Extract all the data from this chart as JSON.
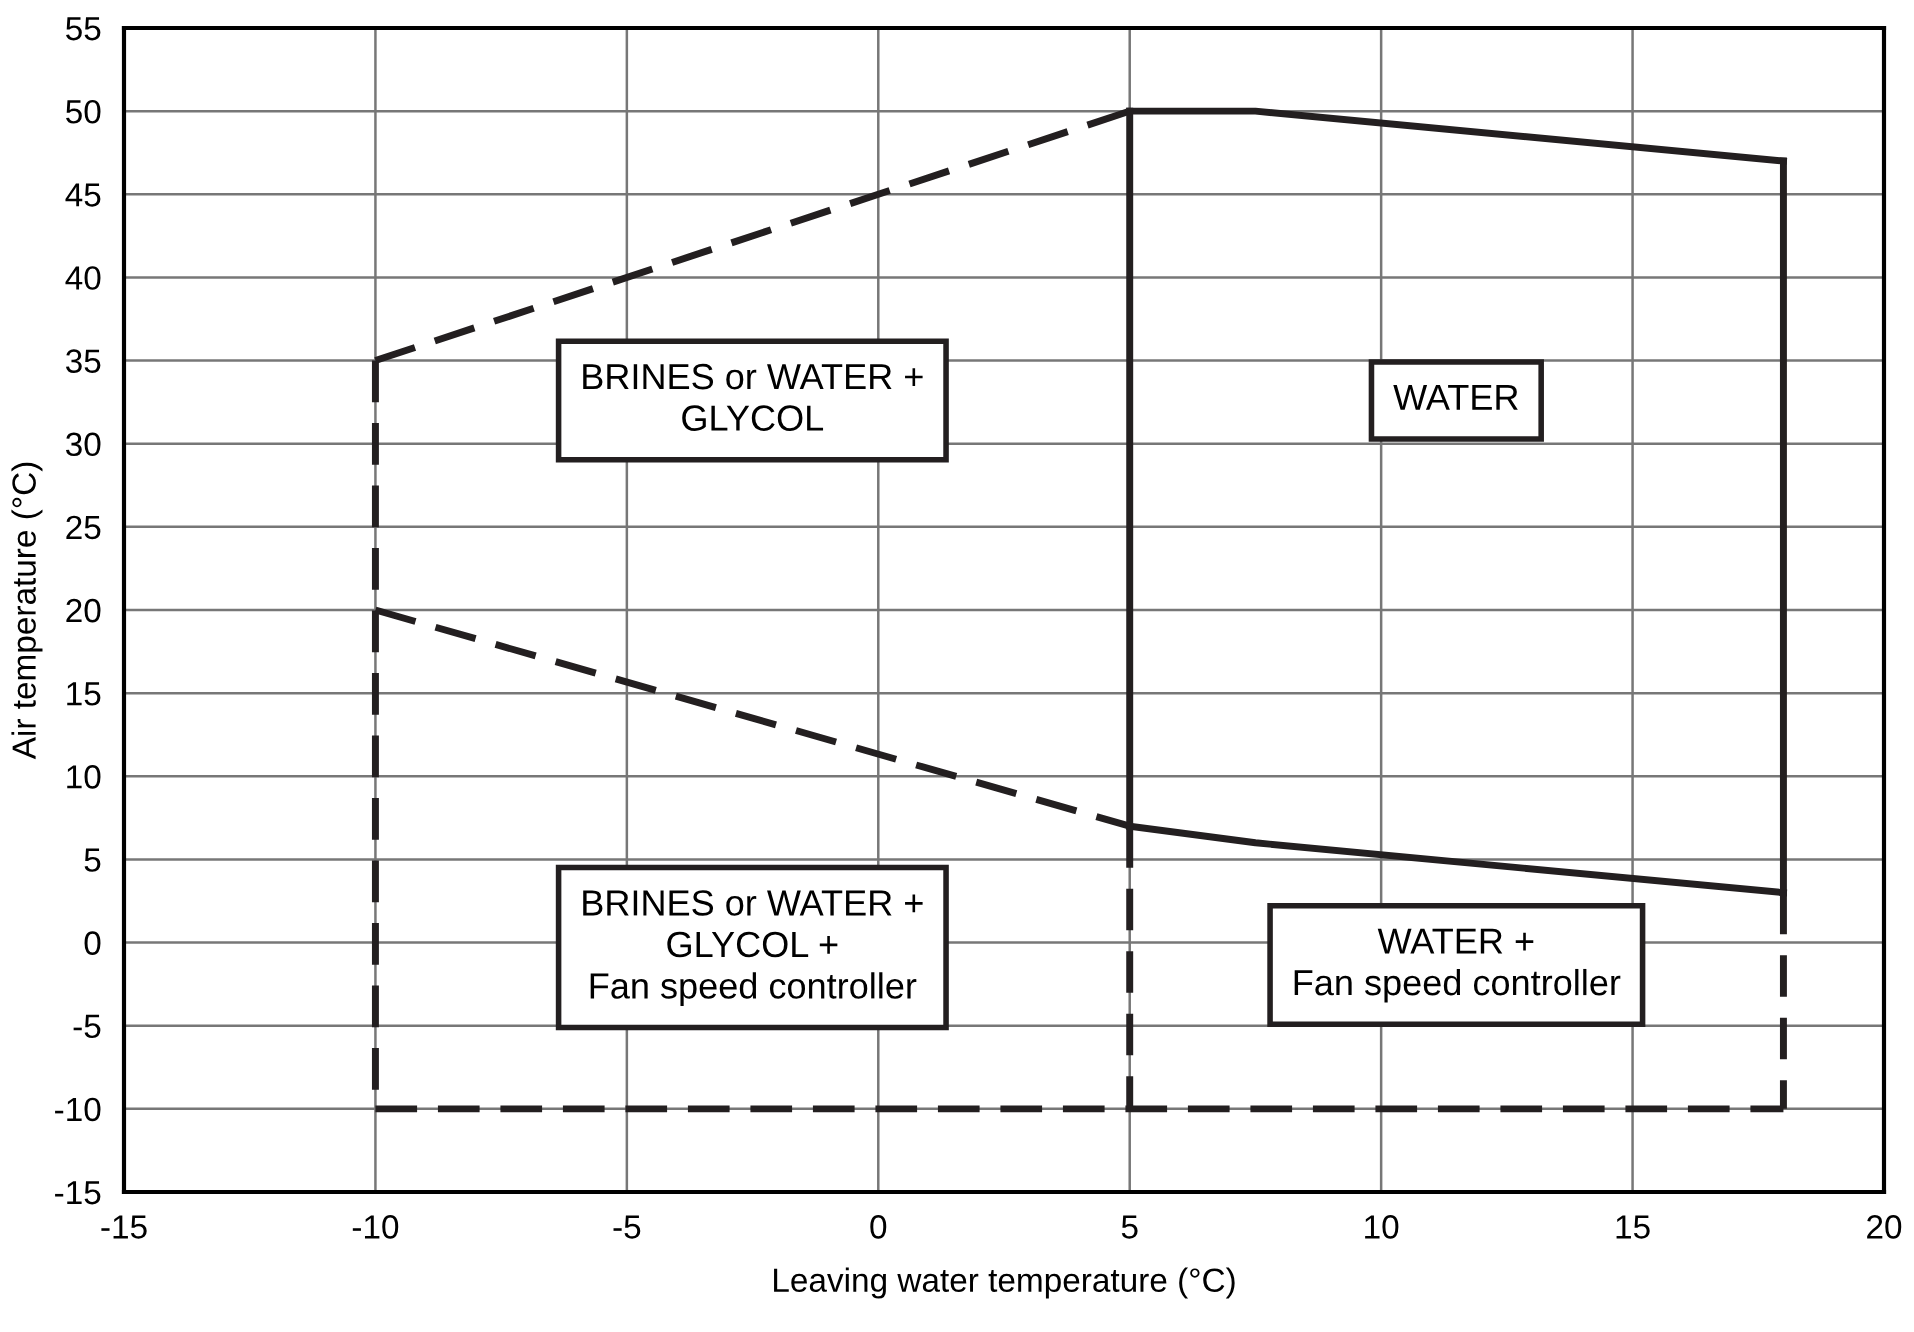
{
  "chart_data": {
    "type": "line",
    "xlabel": "Leaving water temperature (°C)",
    "ylabel": "Air temperature (°C)",
    "xlim": [
      -15,
      20
    ],
    "xticks": [
      -15,
      -10,
      -5,
      0,
      5,
      10,
      15,
      20
    ],
    "ylim": [
      -15,
      55
    ],
    "yticks": [
      -15,
      -10,
      -5,
      0,
      5,
      10,
      15,
      20,
      25,
      30,
      35,
      40,
      45,
      50,
      55
    ],
    "grid": true,
    "legend": false,
    "marker": "none",
    "series": [
      {
        "x": [
          -10,
          5
        ],
        "values": [
          35,
          50
        ],
        "color": "#231f20",
        "line_style": "dashed"
      },
      {
        "x": [
          5,
          7.5,
          18
        ],
        "values": [
          50,
          50,
          47
        ],
        "color": "#231f20",
        "line_style": "solid"
      },
      {
        "x": [
          -10,
          -10
        ],
        "values": [
          35,
          -10
        ],
        "color": "#231f20",
        "line_style": "dashed"
      },
      {
        "x": [
          -10,
          5
        ],
        "values": [
          20,
          7
        ],
        "color": "#231f20",
        "line_style": "dashed"
      },
      {
        "x": [
          5,
          7.5,
          18
        ],
        "values": [
          7,
          6,
          3
        ],
        "color": "#231f20",
        "line_style": "solid"
      },
      {
        "x": [
          5,
          5
        ],
        "values": [
          50,
          7
        ],
        "color": "#231f20",
        "line_style": "solid"
      },
      {
        "x": [
          18,
          18
        ],
        "values": [
          47,
          3
        ],
        "color": "#231f20",
        "line_style": "solid"
      },
      {
        "x": [
          5,
          5
        ],
        "values": [
          7,
          -10
        ],
        "color": "#231f20",
        "line_style": "dashed"
      },
      {
        "x": [
          18,
          18
        ],
        "values": [
          3,
          -10
        ],
        "color": "#231f20",
        "line_style": "dashed"
      },
      {
        "x": [
          -10,
          5,
          18
        ],
        "values": [
          -10,
          -10,
          -10
        ],
        "color": "#231f20",
        "line_style": "dashed"
      }
    ],
    "annotations": [
      "BRINES or WATER +\nGLYCOL",
      "WATER",
      "BRINES or WATER +\nGLYCOL +\nFan speed controller",
      "WATER +\nFan speed controller"
    ]
  }
}
